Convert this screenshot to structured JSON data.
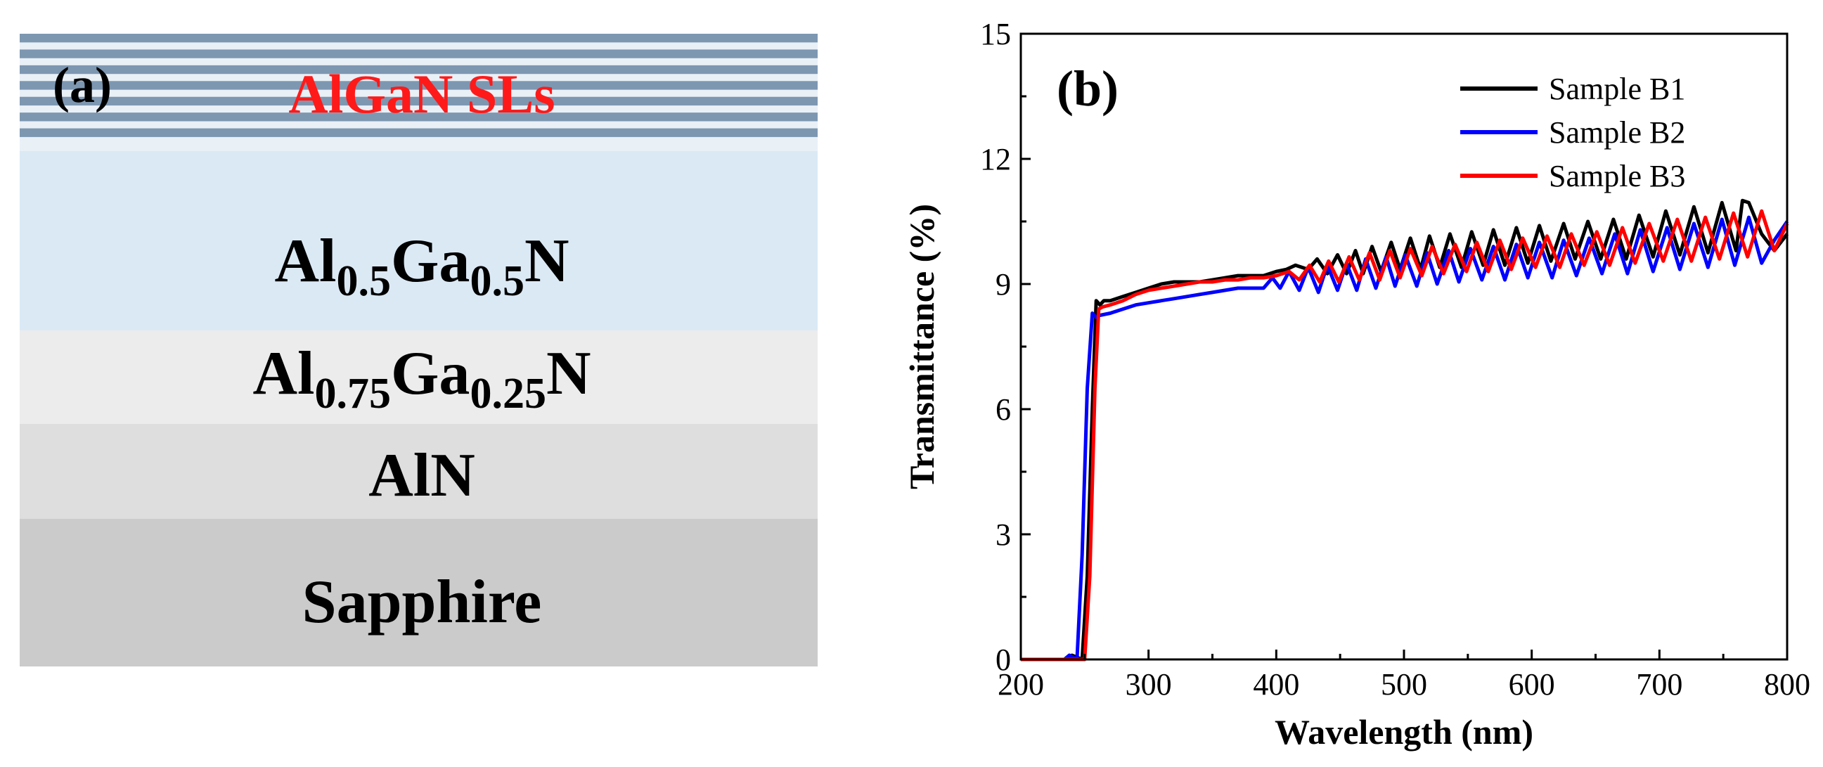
{
  "panel_a": {
    "label": "(a)",
    "layers": [
      {
        "label": "AlGaN SLs",
        "color": "#7d97b1",
        "text_color": "#ff1a1a",
        "type": "superlattice"
      },
      {
        "label_parts": [
          [
            "Al",
            ""
          ],
          [
            "0.5",
            "sub"
          ],
          [
            "Ga",
            ""
          ],
          [
            "0.5",
            "sub"
          ],
          [
            "N",
            ""
          ]
        ],
        "color": "#dbe9f5"
      },
      {
        "label_parts": [
          [
            "Al",
            ""
          ],
          [
            "0.75",
            "sub"
          ],
          [
            "Ga",
            ""
          ],
          [
            "0.25",
            "sub"
          ],
          [
            "N",
            ""
          ]
        ],
        "color": "#ececec"
      },
      {
        "label": "AlN",
        "color": "#dedede"
      },
      {
        "label": "Sapphire",
        "color": "#cbcbcb"
      }
    ]
  },
  "chart_data": {
    "type": "line",
    "panel_label": "(b)",
    "xlabel": "Wavelength (nm)",
    "ylabel": "Transmittance (%)",
    "xlim": [
      200,
      800
    ],
    "ylim": [
      0,
      15
    ],
    "xticks": [
      200,
      300,
      400,
      500,
      600,
      700,
      800
    ],
    "yticks": [
      0,
      3,
      6,
      9,
      12,
      15
    ],
    "legend_position": "top-right",
    "series": [
      {
        "name": "Sample B1",
        "color": "#000000",
        "x": [
          200,
          236,
          240,
          248,
          252,
          256,
          259,
          262,
          265,
          270,
          280,
          290,
          300,
          310,
          320,
          330,
          340,
          350,
          360,
          370,
          380,
          390,
          400,
          408,
          415,
          425,
          432,
          440,
          448,
          455,
          462,
          468,
          475,
          482,
          490,
          497,
          505,
          513,
          520,
          528,
          536,
          545,
          553,
          562,
          570,
          579,
          588,
          597,
          606,
          615,
          625,
          634,
          644,
          654,
          664,
          674,
          684,
          695,
          705,
          716,
          727,
          738,
          749,
          760,
          765,
          770,
          780,
          790,
          800
        ],
        "y": [
          0,
          0,
          0.1,
          0,
          2.0,
          6.0,
          8.6,
          8.5,
          8.6,
          8.6,
          8.7,
          8.8,
          8.9,
          9.0,
          9.05,
          9.05,
          9.05,
          9.1,
          9.15,
          9.2,
          9.2,
          9.2,
          9.3,
          9.35,
          9.45,
          9.35,
          9.6,
          9.25,
          9.7,
          9.25,
          9.8,
          9.25,
          9.9,
          9.3,
          10.0,
          9.35,
          10.1,
          9.35,
          10.15,
          9.4,
          10.2,
          9.4,
          10.25,
          9.45,
          10.3,
          9.45,
          10.35,
          9.5,
          10.4,
          9.55,
          10.45,
          9.6,
          10.5,
          9.6,
          10.55,
          9.6,
          10.65,
          9.65,
          10.75,
          9.7,
          10.85,
          9.75,
          10.95,
          9.8,
          11.0,
          10.95,
          10.2,
          9.8,
          10.2
        ]
      },
      {
        "name": "Sample B2",
        "color": "#0000ff",
        "x": [
          200,
          234,
          238,
          244,
          248,
          252,
          256,
          259,
          262,
          270,
          280,
          290,
          300,
          310,
          320,
          330,
          340,
          350,
          360,
          370,
          380,
          390,
          397,
          403,
          410,
          418,
          425,
          433,
          440,
          448,
          455,
          463,
          470,
          478,
          486,
          493,
          501,
          510,
          518,
          526,
          535,
          543,
          552,
          561,
          570,
          579,
          588,
          597,
          606,
          616,
          625,
          635,
          645,
          655,
          665,
          675,
          685,
          695,
          706,
          716,
          727,
          738,
          749,
          759,
          770,
          780,
          790,
          800
        ],
        "y": [
          0,
          0,
          0.1,
          0,
          2.5,
          6.5,
          8.3,
          8.2,
          8.25,
          8.3,
          8.4,
          8.5,
          8.55,
          8.6,
          8.65,
          8.7,
          8.75,
          8.8,
          8.85,
          8.9,
          8.9,
          8.9,
          9.15,
          8.9,
          9.3,
          8.85,
          9.4,
          8.8,
          9.45,
          8.85,
          9.5,
          8.85,
          9.6,
          8.9,
          9.65,
          8.95,
          9.7,
          8.95,
          9.75,
          9.0,
          9.8,
          9.05,
          9.85,
          9.1,
          9.9,
          9.1,
          9.95,
          9.15,
          10.0,
          9.15,
          10.05,
          9.2,
          10.1,
          9.25,
          10.2,
          9.25,
          10.3,
          9.3,
          10.35,
          9.35,
          10.45,
          9.4,
          10.55,
          9.45,
          10.6,
          9.5,
          10.05,
          10.5
        ]
      },
      {
        "name": "Sample B3",
        "color": "#ff0000",
        "x": [
          200,
          238,
          244,
          250,
          254,
          258,
          261,
          264,
          270,
          280,
          290,
          300,
          310,
          320,
          330,
          340,
          350,
          360,
          370,
          380,
          390,
          400,
          410,
          418,
          426,
          434,
          441,
          449,
          457,
          465,
          473,
          481,
          489,
          497,
          505,
          514,
          522,
          531,
          540,
          549,
          557,
          566,
          575,
          584,
          593,
          603,
          612,
          622,
          631,
          641,
          651,
          661,
          671,
          681,
          692,
          703,
          714,
          725,
          736,
          747,
          758,
          769,
          780,
          790,
          800
        ],
        "y": [
          0,
          0,
          0,
          0,
          2.0,
          6.5,
          8.4,
          8.45,
          8.5,
          8.6,
          8.75,
          8.85,
          8.9,
          8.95,
          9.0,
          9.05,
          9.05,
          9.1,
          9.1,
          9.15,
          9.15,
          9.2,
          9.3,
          9.1,
          9.45,
          9.05,
          9.55,
          9.05,
          9.65,
          9.1,
          9.75,
          9.1,
          9.8,
          9.15,
          9.85,
          9.2,
          9.9,
          9.25,
          9.95,
          9.3,
          10.0,
          9.3,
          10.05,
          9.35,
          10.1,
          9.4,
          10.15,
          9.4,
          10.2,
          9.45,
          10.25,
          9.45,
          10.35,
          9.5,
          10.45,
          9.55,
          10.55,
          9.55,
          10.6,
          9.6,
          10.7,
          9.65,
          10.75,
          9.8,
          10.45
        ]
      }
    ]
  }
}
